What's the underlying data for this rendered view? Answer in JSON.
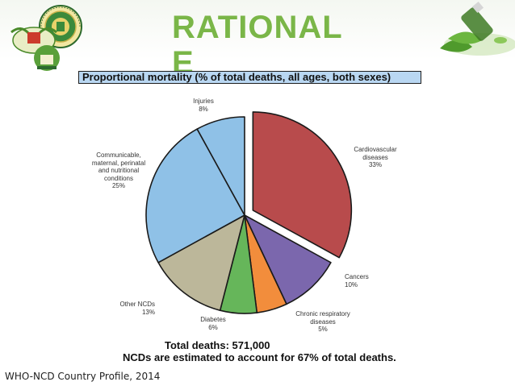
{
  "slide": {
    "title": "RATIONAL E",
    "source": "WHO-NCD Country Profile, 2014"
  },
  "icons": [
    "university-seal-logo",
    "green-emblem-logo",
    "capsule-bottle-decoration"
  ],
  "colors": {
    "title_green": "#7ab648",
    "header_fill": "#b9d7f2"
  },
  "chart_data": {
    "type": "pie",
    "title": "Proportional mortality (% of total deaths, all ages, both sexes)",
    "slices": [
      {
        "label": "Cardiovascular diseases",
        "value": 33,
        "display": "Cardiovascular\ndiseases\n33%",
        "color": "#b84b4c",
        "exploded": true
      },
      {
        "label": "Cancers",
        "value": 10,
        "display": "Cancers\n10%",
        "color": "#7b67ad",
        "exploded": false
      },
      {
        "label": "Chronic respiratory diseases",
        "value": 5,
        "display": "Chronic respiratory\ndiseases\n5%",
        "color": "#f28d3c",
        "exploded": false
      },
      {
        "label": "Diabetes",
        "value": 6,
        "display": "Diabetes\n6%",
        "color": "#66b65a",
        "exploded": false
      },
      {
        "label": "Other NCDs",
        "value": 13,
        "display": "Other NCDs\n13%",
        "color": "#bcb79a",
        "exploded": false
      },
      {
        "label": "Communicable, maternal, perinatal and nutritional conditions",
        "value": 25,
        "display": "Communicable,\nmaternal, perinatal\nand nutritional\nconditions\n25%",
        "color": "#8fc1e7",
        "exploded": false
      },
      {
        "label": "Injuries",
        "value": 8,
        "display": "Injuries\n8%",
        "color": "#8fc1e7",
        "exploded": false
      }
    ],
    "footer": {
      "total": "Total deaths: 571,000",
      "note": "NCDs are estimated to account for 67% of total deaths."
    }
  }
}
